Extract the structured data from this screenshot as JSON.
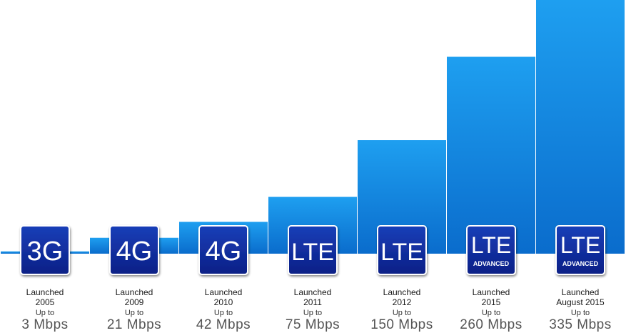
{
  "chart_data": {
    "type": "bar",
    "ylim": [
      0,
      335
    ],
    "categories": [
      "3G",
      "4G",
      "4G",
      "LTE",
      "LTE",
      "LTE ADVANCED",
      "LTE ADVANCED"
    ],
    "series": [
      {
        "values": [
          3,
          21,
          42,
          75,
          150,
          260,
          335
        ]
      }
    ],
    "items": [
      {
        "badge": "3G",
        "badge_sub": "",
        "launched": "Launched",
        "year": "2005",
        "upto": "Up to",
        "speed": "3 Mbps"
      },
      {
        "badge": "4G",
        "badge_sub": "",
        "launched": "Launched",
        "year": "2009",
        "upto": "Up to",
        "speed": "21 Mbps"
      },
      {
        "badge": "4G",
        "badge_sub": "",
        "launched": "Launched",
        "year": "2010",
        "upto": "Up to",
        "speed": "42 Mbps"
      },
      {
        "badge": "LTE",
        "badge_sub": "",
        "launched": "Launched",
        "year": "2011",
        "upto": "Up to",
        "speed": "75 Mbps"
      },
      {
        "badge": "LTE",
        "badge_sub": "",
        "launched": "Launched",
        "year": "2012",
        "upto": "Up to",
        "speed": "150 Mbps"
      },
      {
        "badge": "LTE",
        "badge_sub": "ADVANCED",
        "launched": "Launched",
        "year": "2015",
        "upto": "Up to",
        "speed": "260 Mbps"
      },
      {
        "badge": "LTE",
        "badge_sub": "ADVANCED",
        "launched": "Launched",
        "year": "August 2015",
        "upto": "Up to",
        "speed": "335 Mbps"
      }
    ],
    "colors": {
      "bar_top": "#1a9ae8",
      "bar_bottom": "#0a6fd0",
      "badge": "#0d2a9c",
      "badge_border": "#ffffff"
    }
  }
}
